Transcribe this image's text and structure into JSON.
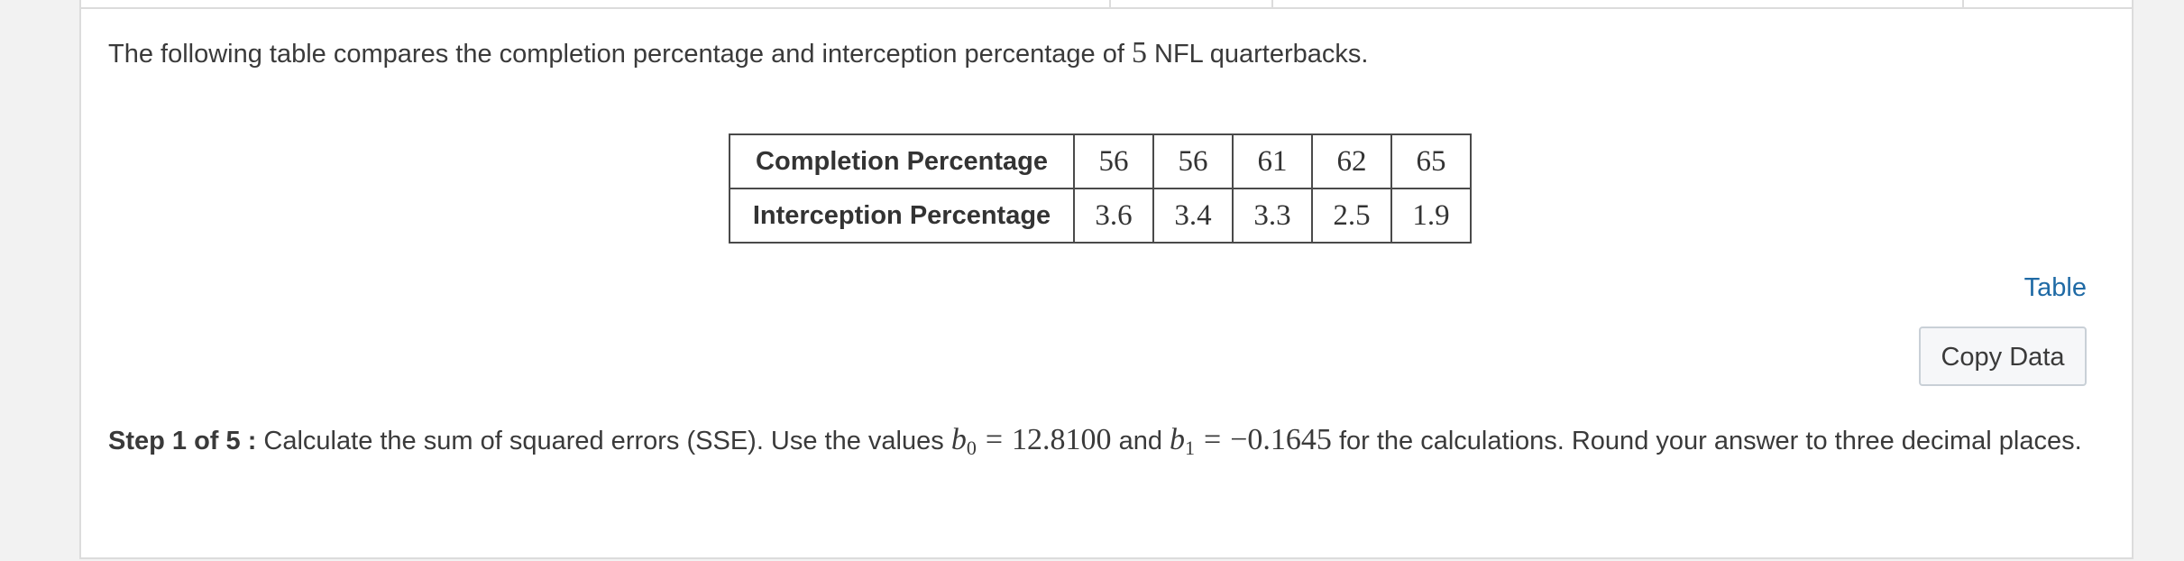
{
  "intro": {
    "before": "The following table compares the completion percentage and interception percentage of ",
    "count": "5",
    "after": " NFL quarterbacks."
  },
  "table": {
    "rows": [
      {
        "label": "Completion Percentage",
        "values": [
          "56",
          "56",
          "61",
          "62",
          "65"
        ]
      },
      {
        "label": "Interception Percentage",
        "values": [
          "3.6",
          "3.4",
          "3.3",
          "2.5",
          "1.9"
        ]
      }
    ]
  },
  "table_link": "Table",
  "copy_button": "Copy Data",
  "step": {
    "label": "Step 1 of 5 :",
    "text_1": " Calculate the sum of squared errors (SSE). Use the values ",
    "b0_symbol": "b",
    "b0_sub": "0",
    "eq": "=",
    "b0_value": "12.8100",
    "and": " and ",
    "b1_symbol": "b",
    "b1_sub": "1",
    "b1_value": "−0.1645",
    "text_2": " for the calculations. Round your answer to three decimal places."
  },
  "colors": {
    "link": "#1f6aa5",
    "text": "#3a3a3a",
    "table_border": "#4a4a4a"
  }
}
